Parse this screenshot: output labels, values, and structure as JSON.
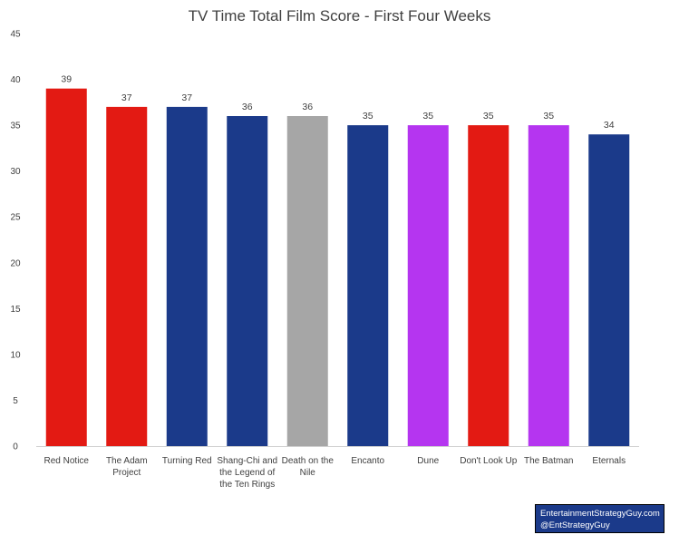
{
  "chart_data": {
    "type": "bar",
    "title": "TV Time Total Film Score - First Four Weeks",
    "xlabel": "",
    "ylabel": "",
    "ylim": [
      0,
      45
    ],
    "yticks": [
      0,
      5,
      10,
      15,
      20,
      25,
      30,
      35,
      40,
      45
    ],
    "grid": false,
    "legend": "none",
    "categories": [
      [
        "Red Notice"
      ],
      [
        "The Adam",
        "Project"
      ],
      [
        "Turning Red"
      ],
      [
        "Shang-Chi and",
        "the Legend of",
        "the Ten Rings"
      ],
      [
        "Death on the",
        "Nile"
      ],
      [
        "Encanto"
      ],
      [
        "Dune"
      ],
      [
        "Don't Look Up"
      ],
      [
        "The Batman"
      ],
      [
        "Eternals"
      ]
    ],
    "values": [
      39,
      37,
      37,
      36,
      36,
      35,
      35,
      35,
      35,
      34
    ],
    "bar_colors": [
      "#e31a13",
      "#e31a13",
      "#1b3a8a",
      "#1b3a8a",
      "#a6a6a6",
      "#1b3a8a",
      "#b535f0",
      "#e31a13",
      "#b535f0",
      "#1b3a8a"
    ]
  },
  "credit": {
    "line1": "EntertainmentStrategyGuy.com",
    "line2": "@EntStrategyGuy"
  }
}
